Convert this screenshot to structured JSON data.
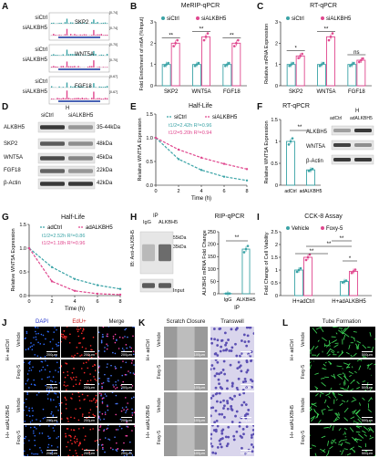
{
  "panel_letters": [
    "A",
    "B",
    "C",
    "D",
    "E",
    "F",
    "G",
    "H",
    "I",
    "J",
    "K",
    "L"
  ],
  "colors": {
    "sictrl": "#3aa3a6",
    "siALKBH5": "#e0478e",
    "vehicle": "#3aa3a6",
    "foxy": "#e0478e"
  },
  "A": {
    "tracks": [
      {
        "gene": "SKP2",
        "top_range": "[0-74]",
        "bot_range": "[0-74]"
      },
      {
        "gene": "WNT5A",
        "top_range": "[0-70]",
        "bot_range": "[0-70]"
      },
      {
        "gene": "FGF18",
        "top_range": "[0-67]",
        "bot_range": "[0-67]"
      }
    ],
    "row_labels": [
      "siCtrl",
      "siALKBH5"
    ]
  },
  "B": {
    "title": "MeRIP-qPCR",
    "ylabel": "Fold Enrichment of m6A (%Input)",
    "legend": [
      "siCtrl",
      "siALKBH5"
    ],
    "sig": [
      "**",
      "**",
      "**"
    ]
  },
  "C": {
    "title": "RT-qPCR",
    "ylabel": "Relative mRNA Expression",
    "legend": [
      "siCtrl",
      "siALKBH5"
    ],
    "sig": [
      "*",
      "**",
      "ns"
    ]
  },
  "D": {
    "header": "H",
    "cols": [
      "siCtrl",
      "siALKBH5"
    ],
    "rows": [
      {
        "name": "ALKBH5",
        "kda": "35-44kDa"
      },
      {
        "name": "SKP2",
        "kda": "48kDa"
      },
      {
        "name": "WNT5A",
        "kda": "45kDa"
      },
      {
        "name": "FGF18",
        "kda": "22kDa"
      },
      {
        "name": "β-Actin",
        "kda": "42kDa"
      }
    ]
  },
  "E": {
    "title": "Half-Life",
    "ylabel": "Relative WNT5A Expression",
    "xlabel": "Time (h)",
    "legend": [
      "siCtrl",
      "siALKBH5"
    ],
    "ann1": "t1/2=2.42h R²=0.96",
    "ann2": "t1/2=5.20h R²=0.94"
  },
  "F": {
    "title": "RT-qPCR",
    "ylabel": "Relative WNT5A Expression",
    "sig": "**",
    "blot_header": "H",
    "blot_cols": [
      "adCtrl",
      "adALKBH5"
    ],
    "blot_rows": [
      "ALKBH5",
      "WNT5A",
      "β-Actin"
    ]
  },
  "G": {
    "title": "Half-Life",
    "ylabel": "Relative WNT5A Expression",
    "xlabel": "Time (h)",
    "legend": [
      "adCtrl",
      "adALKBH5"
    ],
    "ann1": "t1/2=2.52h R²=0.86",
    "ann2": "t1/2=1.18h R²=0.96"
  },
  "H": {
    "ip_label": "IP",
    "cols": [
      "IgG",
      "ALKBH5"
    ],
    "side": "IB: Anti-ALKBH5",
    "mw1": "55kDa",
    "mw2": "35kDa",
    "input": "Input",
    "rip_title": "RIP-qPCR",
    "rip_ylabel": "ALKBH5 mRNA Fold Change",
    "rip_xlabel": "IP",
    "rip_sig": "**"
  },
  "I": {
    "title": "CCK-8 Assay",
    "ylabel": "Fold Change of Cell Viability",
    "legend": [
      "Vehicle",
      "Foxy-5"
    ],
    "sig": [
      "**",
      "**",
      "**",
      "*"
    ]
  },
  "J": {
    "cols": [
      "DAPI",
      "EdU+",
      "Merge"
    ],
    "groups": [
      "H+ adCtrl",
      "H+ adALKBH5"
    ],
    "rows": [
      "Vehicle",
      "Foxy-5",
      "Vehicle",
      "Foxy-5"
    ],
    "scale": "200μm"
  },
  "K": {
    "cols": [
      "Scratch Closure",
      "Transwell"
    ],
    "groups": [
      "H+ adCtrl",
      "H+ adALKBH5"
    ],
    "rows": [
      "Vehicle",
      "Foxy-5",
      "Vehicle",
      "Foxy-5"
    ],
    "scale": "100μm"
  },
  "L": {
    "title": "Tube Formation",
    "groups": [
      "H+ adCtrl",
      "H+ adALKBH5"
    ],
    "rows": [
      "Vehicle",
      "Foxy-5",
      "Vehicle",
      "Foxy-5"
    ],
    "scale": "500μm"
  },
  "chart_data": [
    {
      "type": "bar",
      "id": "B",
      "categories": [
        "SKP2",
        "WNT5A",
        "FGF18"
      ],
      "series": [
        {
          "name": "siCtrl",
          "values": [
            1.0,
            1.0,
            1.0
          ]
        },
        {
          "name": "siALKBH5",
          "values": [
            2.0,
            2.3,
            2.0
          ]
        }
      ],
      "ylim": [
        0,
        3
      ],
      "yticks": [
        0,
        1,
        2,
        3
      ]
    },
    {
      "type": "bar",
      "id": "C",
      "categories": [
        "SKP2",
        "WNT5A",
        "FGF18"
      ],
      "series": [
        {
          "name": "siCtrl",
          "values": [
            1.0,
            1.0,
            1.0
          ]
        },
        {
          "name": "siALKBH5",
          "values": [
            1.4,
            2.3,
            1.2
          ]
        }
      ],
      "ylim": [
        0,
        3
      ],
      "yticks": [
        0,
        1,
        2,
        3
      ]
    },
    {
      "type": "line",
      "id": "E",
      "x": [
        0,
        2,
        4,
        6,
        8
      ],
      "series": [
        {
          "name": "siCtrl",
          "values": [
            1.0,
            0.55,
            0.32,
            0.18,
            0.1
          ]
        },
        {
          "name": "siALKBH5",
          "values": [
            1.0,
            0.75,
            0.58,
            0.45,
            0.34
          ]
        }
      ],
      "xlim": [
        0,
        8
      ],
      "ylim": [
        0,
        1.5
      ],
      "yticks": [
        0.0,
        0.5,
        1.0,
        1.5
      ],
      "xticks": [
        0,
        2,
        4,
        6,
        8
      ]
    },
    {
      "type": "bar",
      "id": "F",
      "categories": [
        "adCtrl",
        "adALKBH5"
      ],
      "values": [
        1.0,
        0.35
      ],
      "ylim": [
        0,
        1.5
      ],
      "yticks": [
        0.0,
        0.5,
        1.0,
        1.5
      ]
    },
    {
      "type": "line",
      "id": "G",
      "x": [
        0,
        2,
        4,
        6,
        8
      ],
      "series": [
        {
          "name": "adCtrl",
          "values": [
            1.0,
            0.6,
            0.35,
            0.22,
            0.14
          ]
        },
        {
          "name": "adALKBH5",
          "values": [
            1.0,
            0.3,
            0.1,
            0.04,
            0.02
          ]
        }
      ],
      "xlim": [
        0,
        8
      ],
      "ylim": [
        0,
        1.5
      ],
      "yticks": [
        0.0,
        0.5,
        1.0,
        1.5
      ],
      "xticks": [
        0,
        2,
        4,
        6,
        8
      ]
    },
    {
      "type": "bar",
      "id": "H_rip",
      "categories": [
        "IgG",
        "ALKBH5"
      ],
      "values": [
        1,
        180
      ],
      "ylim": [
        0,
        250
      ],
      "yticks": [
        0,
        50,
        100,
        150,
        200,
        250
      ]
    },
    {
      "type": "bar",
      "id": "I",
      "categories": [
        "H+adCtrl",
        "H+adALKBH5"
      ],
      "series": [
        {
          "name": "Vehicle",
          "values": [
            1.0,
            0.55
          ]
        },
        {
          "name": "Foxy-5",
          "values": [
            1.5,
            0.95
          ]
        }
      ],
      "ylim": [
        0,
        2.5
      ],
      "yticks": [
        0.0,
        0.5,
        1.0,
        1.5,
        2.0,
        2.5
      ]
    }
  ]
}
